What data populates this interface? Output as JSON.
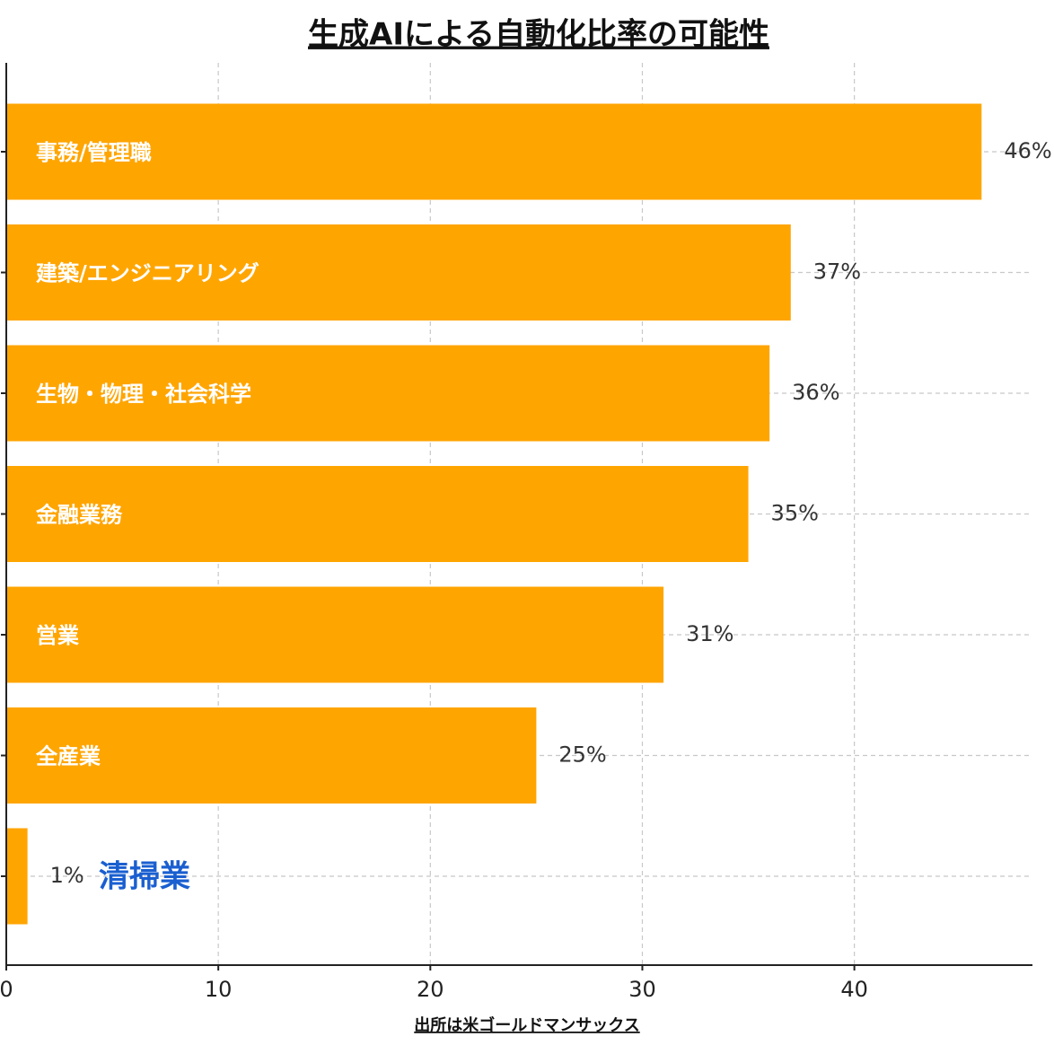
{
  "chart_data": {
    "type": "barh",
    "title": "生成AIによる自動化比率の可能性",
    "xlabel": "出所は米ゴールドマンサックス",
    "categories": [
      "事務/管理職",
      "建築/エンジニアリング",
      "生物・物理・社会科学",
      "金融業務",
      "営業",
      "全産業",
      "清掃業"
    ],
    "values": [
      46,
      37,
      36,
      35,
      31,
      25,
      1
    ],
    "value_labels": [
      "46%",
      "37%",
      "36%",
      "35%",
      "31%",
      "25%",
      "1%"
    ],
    "color": "#ffa500",
    "xlim": [
      0,
      48.4
    ],
    "xticks": [
      0,
      10,
      20,
      30,
      40
    ],
    "grid": true
  }
}
